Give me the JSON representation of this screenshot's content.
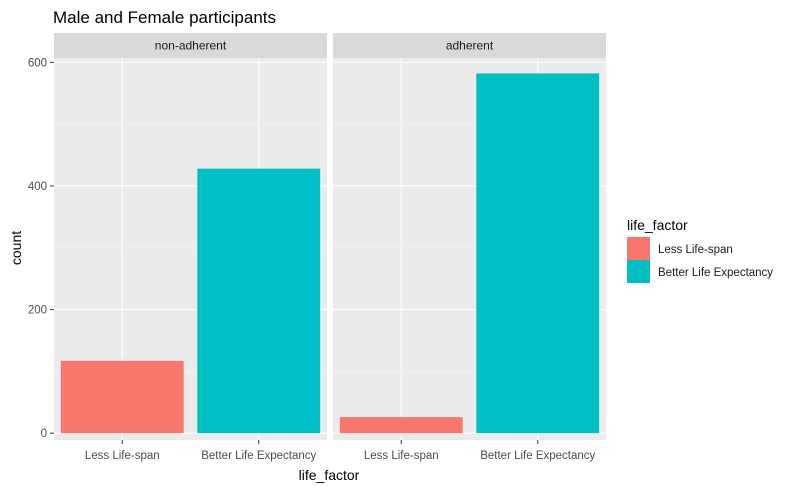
{
  "chart_data": {
    "type": "bar",
    "title": "Male and Female participants",
    "xlabel": "life_factor",
    "ylabel": "count",
    "ylim": [
      -11,
      607
    ],
    "yticks": [
      0,
      200,
      400,
      600
    ],
    "categories": [
      "Less Life-span",
      "Better Life Expectancy"
    ],
    "facets": [
      {
        "label": "non-adherent",
        "values": [
          117,
          428
        ]
      },
      {
        "label": "adherent",
        "values": [
          26,
          582
        ]
      }
    ],
    "legend": {
      "title": "life_factor",
      "placement": "right",
      "entries": [
        {
          "label": "Less Life-span",
          "color": "#F8766D"
        },
        {
          "label": "Better Life Expectancy",
          "color": "#00BFC4"
        }
      ]
    },
    "grid": true,
    "colors": {
      "panel_bg": "#EBEBEB",
      "strip_bg": "#D9D9D9",
      "grid_major": "#FFFFFF",
      "grid_minor": "#F5F5F5"
    }
  }
}
